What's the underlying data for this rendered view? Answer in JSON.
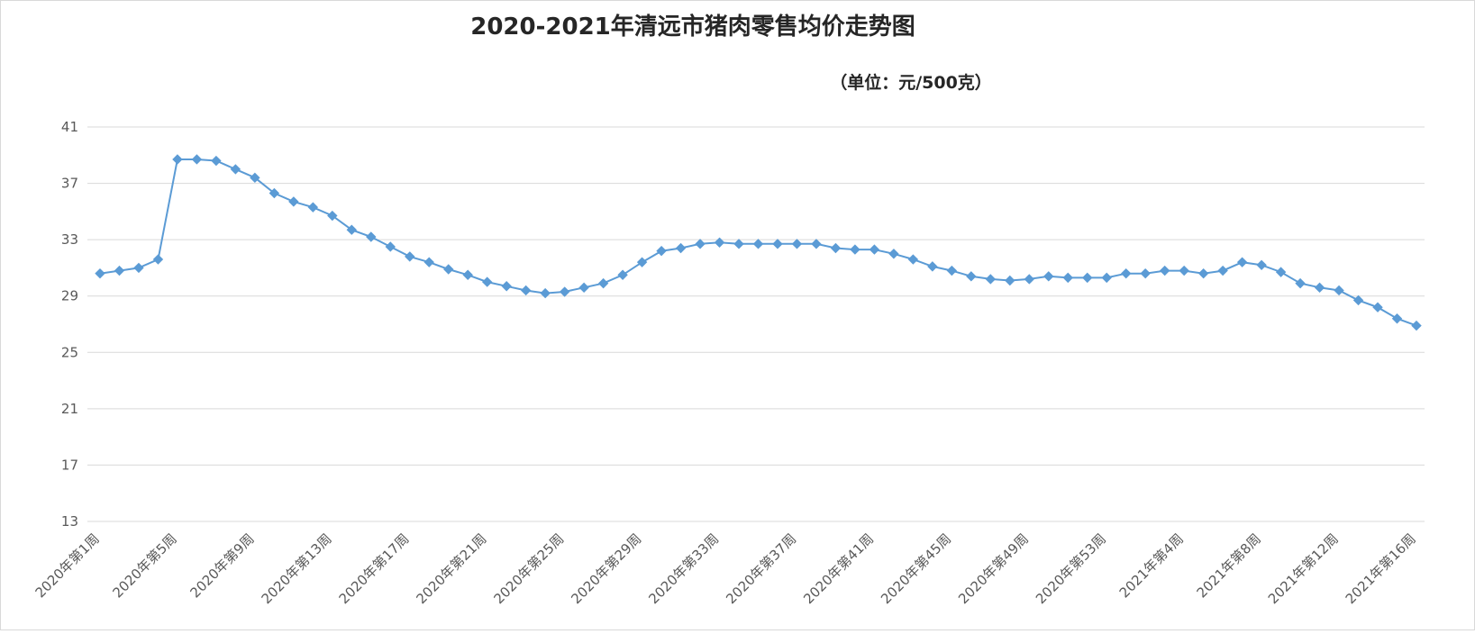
{
  "chart_data": {
    "type": "line",
    "title": "2020-2021年清远市猪肉零售均价走势图",
    "unit_note": "（单位：元/500克）",
    "xlabel": "",
    "ylabel": "",
    "ylim": [
      13,
      41
    ],
    "yticks": [
      13,
      17,
      21,
      25,
      29,
      33,
      37,
      41
    ],
    "grid": "horizontal",
    "colors": {
      "line": "#5b9bd5",
      "marker": "#5b9bd5",
      "grid": "#d9d9d9"
    },
    "x_tick_labels": [
      "2020年第1周",
      "2020年第5周",
      "2020年第9周",
      "2020年第13周",
      "2020年第17周",
      "2020年第21周",
      "2020年第25周",
      "2020年第29周",
      "2020年第33周",
      "2020年第37周",
      "2020年第41周",
      "2020年第45周",
      "2020年第49周",
      "2020年第53周",
      "2021年第4周",
      "2021年第8周",
      "2021年第12周",
      "2021年第16周"
    ],
    "categories": [
      "2020年第1周",
      "2020年第2周",
      "2020年第3周",
      "2020年第4周",
      "2020年第5周",
      "2020年第6周",
      "2020年第7周",
      "2020年第8周",
      "2020年第9周",
      "2020年第10周",
      "2020年第11周",
      "2020年第12周",
      "2020年第13周",
      "2020年第14周",
      "2020年第15周",
      "2020年第16周",
      "2020年第17周",
      "2020年第18周",
      "2020年第19周",
      "2020年第20周",
      "2020年第21周",
      "2020年第22周",
      "2020年第23周",
      "2020年第24周",
      "2020年第25周",
      "2020年第26周",
      "2020年第27周",
      "2020年第28周",
      "2020年第29周",
      "2020年第30周",
      "2020年第31周",
      "2020年第32周",
      "2020年第33周",
      "2020年第34周",
      "2020年第35周",
      "2020年第36周",
      "2020年第37周",
      "2020年第38周",
      "2020年第39周",
      "2020年第40周",
      "2020年第41周",
      "2020年第42周",
      "2020年第43周",
      "2020年第44周",
      "2020年第45周",
      "2020年第46周",
      "2020年第47周",
      "2020年第48周",
      "2020年第49周",
      "2020年第50周",
      "2020年第51周",
      "2020年第52周",
      "2020年第53周",
      "2021年第1周",
      "2021年第2周",
      "2021年第3周",
      "2021年第4周",
      "2021年第5周",
      "2021年第6周",
      "2021年第7周",
      "2021年第8周",
      "2021年第9周",
      "2021年第10周",
      "2021年第11周",
      "2021年第12周",
      "2021年第13周",
      "2021年第14周",
      "2021年第15周",
      "2021年第16周"
    ],
    "values": [
      30.6,
      30.8,
      31.0,
      31.6,
      38.7,
      38.7,
      38.6,
      38.0,
      37.4,
      36.3,
      35.7,
      35.3,
      34.7,
      33.7,
      33.2,
      32.5,
      31.8,
      31.4,
      30.9,
      30.5,
      30.0,
      29.7,
      29.4,
      29.2,
      29.3,
      29.6,
      29.9,
      30.5,
      31.4,
      32.2,
      32.4,
      32.7,
      32.8,
      32.7,
      32.7,
      32.7,
      32.7,
      32.7,
      32.4,
      32.3,
      32.3,
      32.0,
      31.6,
      31.1,
      30.8,
      30.4,
      30.2,
      30.1,
      30.2,
      30.4,
      30.3,
      30.3,
      30.3,
      30.6,
      30.6,
      30.8,
      30.8,
      30.6,
      30.8,
      31.4,
      31.2,
      30.7,
      29.9,
      29.6,
      29.4,
      28.7,
      28.2,
      27.4,
      26.9
    ]
  }
}
